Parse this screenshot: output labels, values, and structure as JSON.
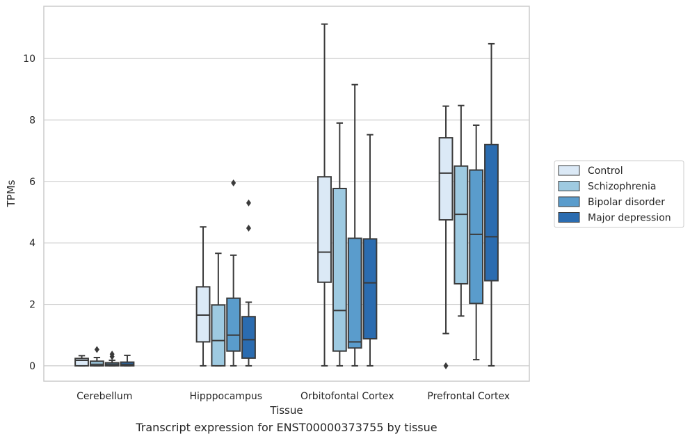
{
  "chart_data": {
    "type": "box",
    "xlabel": "Tissue",
    "ylabel": "TPMs",
    "ylim": [
      -0.5,
      11.7
    ],
    "yticks": [
      0,
      2,
      4,
      6,
      8,
      10
    ],
    "grid": "horizontal",
    "legend_position": "right",
    "categories": [
      "Cerebellum",
      "Hipppocampus",
      "Orbitofontal Cortex",
      "Prefrontal Cortex"
    ],
    "series": [
      {
        "name": "Control",
        "color": "#dbe9f6",
        "boxes": [
          {
            "min": 0,
            "q1": 0,
            "median": 0.18,
            "q3": 0.24,
            "max": 0.33,
            "outliers": []
          },
          {
            "min": 0,
            "q1": 0.78,
            "median": 1.65,
            "q3": 2.57,
            "max": 4.52,
            "outliers": []
          },
          {
            "min": 0,
            "q1": 2.72,
            "median": 3.7,
            "q3": 6.15,
            "max": 11.12,
            "outliers": []
          },
          {
            "min": 1.05,
            "q1": 4.75,
            "median": 6.27,
            "q3": 7.42,
            "max": 8.45,
            "outliers": [
              0
            ]
          }
        ]
      },
      {
        "name": "Schizophrenia",
        "color": "#9ecae1",
        "boxes": [
          {
            "min": 0,
            "q1": 0,
            "median": 0.05,
            "q3": 0.15,
            "max": 0.27,
            "outliers": [
              0.53
            ]
          },
          {
            "min": 0,
            "q1": 0,
            "median": 0.82,
            "q3": 1.98,
            "max": 3.66,
            "outliers": []
          },
          {
            "min": 0,
            "q1": 0.48,
            "median": 1.8,
            "q3": 5.77,
            "max": 7.9,
            "outliers": []
          },
          {
            "min": 1.62,
            "q1": 2.67,
            "median": 4.93,
            "q3": 6.5,
            "max": 8.47,
            "outliers": []
          }
        ]
      },
      {
        "name": "Bipolar disorder",
        "color": "#5a9ccc",
        "boxes": [
          {
            "min": 0,
            "q1": 0,
            "median": 0.05,
            "q3": 0.1,
            "max": 0.18,
            "outliers": [
              0.3,
              0.38
            ]
          },
          {
            "min": 0,
            "q1": 0.48,
            "median": 1.0,
            "q3": 2.2,
            "max": 3.6,
            "outliers": [
              5.95
            ]
          },
          {
            "min": 0,
            "q1": 0.58,
            "median": 0.78,
            "q3": 4.15,
            "max": 9.15,
            "outliers": []
          },
          {
            "min": 0.2,
            "q1": 2.03,
            "median": 4.28,
            "q3": 6.37,
            "max": 7.83,
            "outliers": []
          }
        ]
      },
      {
        "name": "Major depression",
        "color": "#2b6cb0",
        "boxes": [
          {
            "min": 0,
            "q1": 0,
            "median": 0.05,
            "q3": 0.12,
            "max": 0.34,
            "outliers": []
          },
          {
            "min": 0,
            "q1": 0.25,
            "median": 0.85,
            "q3": 1.6,
            "max": 2.07,
            "outliers": [
              4.48,
              5.3
            ]
          },
          {
            "min": 0,
            "q1": 0.88,
            "median": 2.7,
            "q3": 4.13,
            "max": 7.52,
            "outliers": []
          },
          {
            "min": 0,
            "q1": 2.77,
            "median": 4.2,
            "q3": 7.2,
            "max": 10.48,
            "outliers": []
          }
        ]
      }
    ]
  },
  "caption": "Transcript expression for ENST00000373755 by tissue"
}
